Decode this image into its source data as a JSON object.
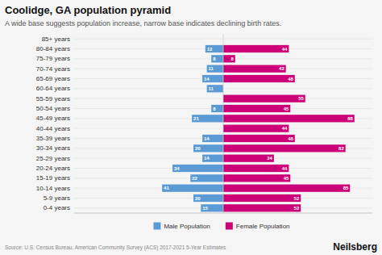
{
  "chart_data": {
    "type": "bar",
    "orientation": "horizontal",
    "title": "Coolidge, GA population pyramid",
    "subtitle": "A wide base suggests population increase, narrow base indicates declining birth rates.",
    "annotations": [
      "Source: U.S. Census Bureau, American Community Survey (ACS) 2017-2021 5-Year Estimates",
      "Neilsberg"
    ],
    "categories": [
      "85+ years",
      "80-84 years",
      "75-79 years",
      "70-74 years",
      "65-69 years",
      "60-64 years",
      "55-59 years",
      "50-54 years",
      "45-49 years",
      "40-44 years",
      "35-39 years",
      "30-34 years",
      "25-29 years",
      "20-24 years",
      "15-19 years",
      "10-14 years",
      "5-9 years",
      "0-4 years"
    ],
    "series": [
      {
        "name": "Male Population",
        "color": "#5b9bd5",
        "values": [
          0,
          12,
          8,
          11,
          14,
          11,
          0,
          8,
          21,
          0,
          14,
          20,
          14,
          34,
          22,
          41,
          20,
          15
        ]
      },
      {
        "name": "Female Population",
        "color": "#cc0077",
        "values": [
          0,
          44,
          8,
          42,
          48,
          0,
          55,
          45,
          88,
          44,
          48,
          82,
          34,
          44,
          45,
          85,
          52,
          52
        ]
      }
    ],
    "xlim": [
      -100,
      100
    ],
    "tick_labels": "y",
    "grid": true,
    "legend": "bottom",
    "data_labels": true
  }
}
